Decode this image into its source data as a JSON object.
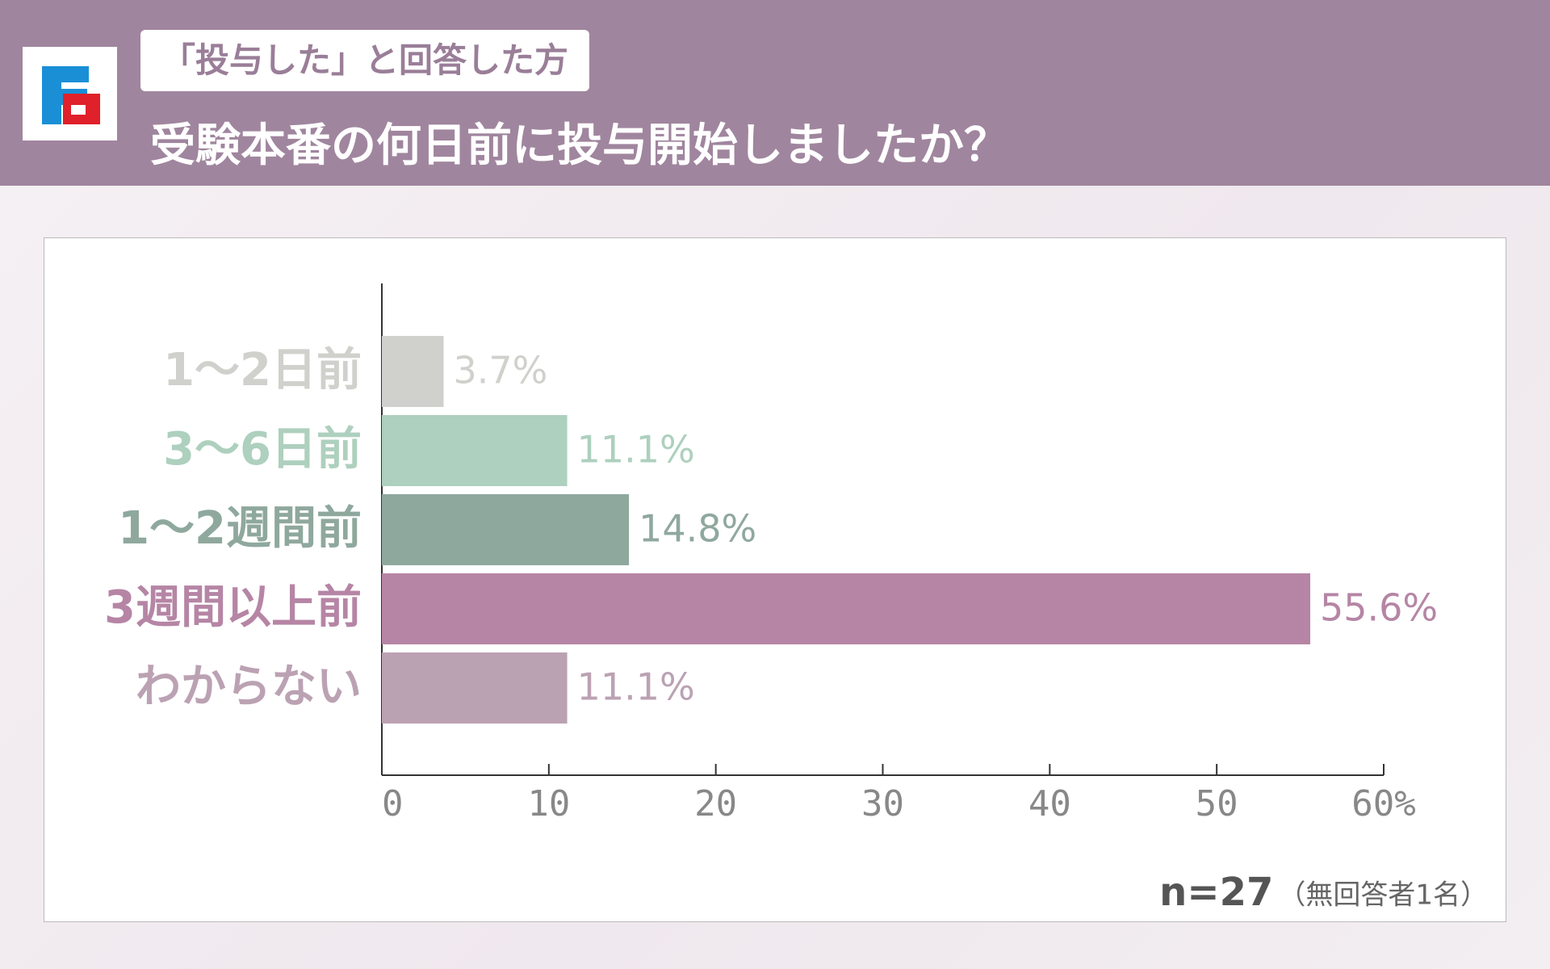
{
  "header": {
    "subtitle": "「投与した」と回答した方",
    "title": "受験本番の何日前に投与開始しましたか？"
  },
  "chart_data": {
    "type": "hbar",
    "categories": [
      "1〜2日前",
      "3〜6日前",
      "1〜2週間前",
      "3週間以上前",
      "わからない"
    ],
    "values": [
      3.7,
      11.1,
      14.8,
      55.6,
      11.1
    ],
    "value_labels": [
      "3.7%",
      "11.1%",
      "14.8%",
      "55.6%",
      "11.1%"
    ],
    "colors": [
      "#d0d0cc",
      "#aed0be",
      "#8fa89e",
      "#b685a5",
      "#bba2b3"
    ],
    "xlim": [
      0,
      60
    ],
    "xticks": [
      0,
      10,
      20,
      30,
      40,
      50,
      {
        "value": 60,
        "label": "60%"
      }
    ],
    "note": "n=27",
    "note_detail": "（無回答者1名）"
  }
}
